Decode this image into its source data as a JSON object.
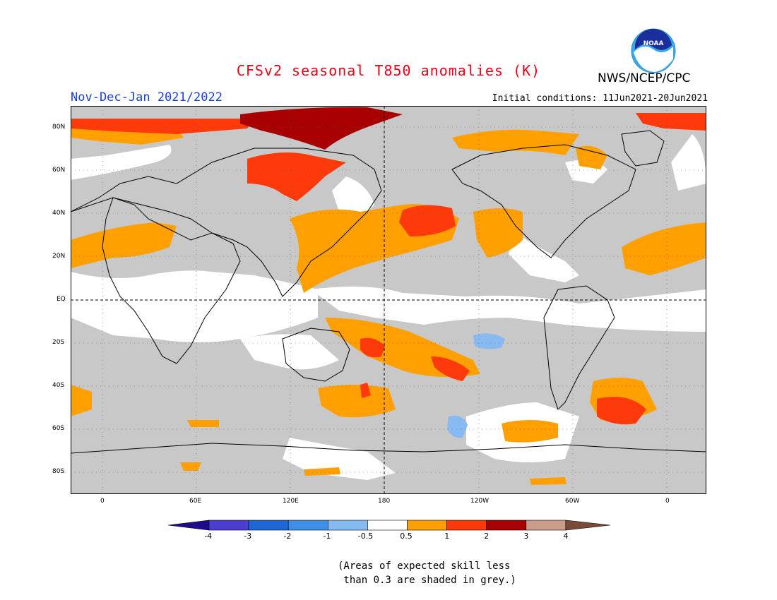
{
  "header": {
    "title": "CFSv2 seasonal T850 anomalies (K)",
    "season": "Nov-Dec-Jan 2021/2022",
    "initial_conditions": "Initial conditions: 11Jun2021-20Jun2021",
    "agency": "NWS/NCEP/CPC",
    "logo_text": "NOAA"
  },
  "map": {
    "projection": "cylindrical equidistant",
    "lon_range": [
      -20,
      380
    ],
    "lat_range": [
      -90,
      90
    ],
    "lat_labels": [
      "80N",
      "60N",
      "40N",
      "20N",
      "EQ",
      "20S",
      "40S",
      "60S",
      "80S"
    ],
    "lon_labels": [
      "0",
      "60E",
      "120E",
      "180",
      "120W",
      "60W",
      "0"
    ],
    "reference_lines": [
      "equator",
      "180 meridian"
    ]
  },
  "legend": {
    "ticks": [
      "-4",
      "-3",
      "-2",
      "-1",
      "-0.5",
      "0.5",
      "1",
      "2",
      "3",
      "4"
    ],
    "colors": [
      "#1e0c8c",
      "#4b3ed1",
      "#1f66d6",
      "#3f8fe8",
      "#86baf0",
      "#ffffff",
      "#ff9f00",
      "#ff3a0a",
      "#a80000",
      "#c99b88",
      "#7a4a36"
    ],
    "skill_grey": "#c8c8c8"
  },
  "footnote": {
    "line1": "(Areas of expected skill less",
    "line2": " than 0.3 are shaded in grey.)"
  }
}
